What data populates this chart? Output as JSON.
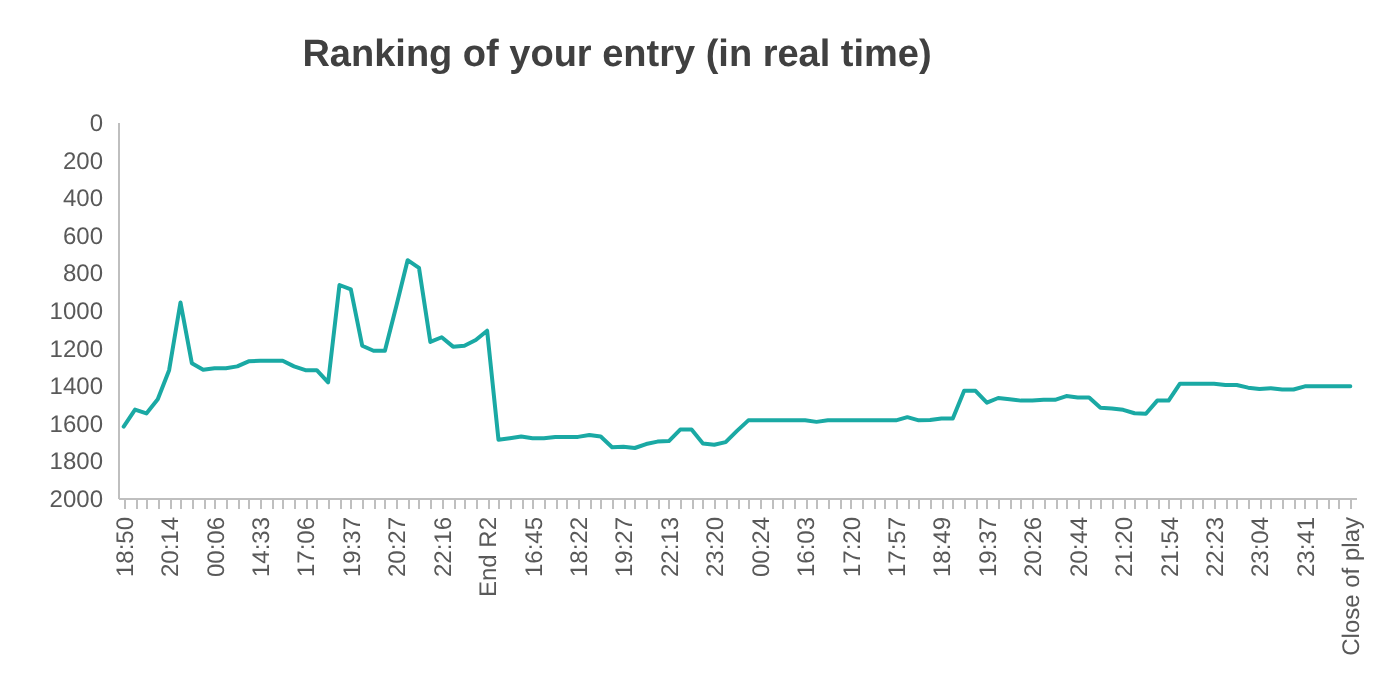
{
  "chart_data": {
    "type": "line",
    "title": "Ranking of your entry (in real time)",
    "categories": [
      "18:50",
      null,
      null,
      null,
      "20:14",
      null,
      null,
      null,
      "00:06",
      null,
      null,
      null,
      "14:33",
      null,
      null,
      null,
      "17:06",
      null,
      null,
      null,
      "19:37",
      null,
      null,
      null,
      "20:27",
      null,
      null,
      null,
      "22:16",
      null,
      null,
      null,
      "End R2",
      null,
      null,
      null,
      "16:45",
      null,
      null,
      null,
      "18:22",
      null,
      null,
      null,
      "19:27",
      null,
      null,
      null,
      "22:13",
      null,
      null,
      null,
      "23:20",
      null,
      null,
      null,
      "00:24",
      null,
      null,
      null,
      "16:03",
      null,
      null,
      null,
      "17:20",
      null,
      null,
      null,
      "17:57",
      null,
      null,
      null,
      "18:49",
      null,
      null,
      null,
      "19:37",
      null,
      null,
      null,
      "20:26",
      null,
      null,
      null,
      "20:44",
      null,
      null,
      null,
      "21:20",
      null,
      null,
      null,
      "21:54",
      null,
      null,
      null,
      "22:23",
      null,
      null,
      null,
      "23:04",
      null,
      null,
      null,
      "23:41",
      null,
      null,
      null,
      "Close of play"
    ],
    "series": [
      {
        "color": "#1aa9a4",
        "values": [
          1620,
          1530,
          1550,
          1475,
          1320,
          960,
          1283,
          1318,
          1310,
          1310,
          1300,
          1273,
          1270,
          1270,
          1270,
          1300,
          1320,
          1320,
          1385,
          867,
          890,
          1190,
          1217,
          1217,
          980,
          735,
          776,
          1170,
          1145,
          1195,
          1190,
          1160,
          1110,
          1690,
          1682,
          1673,
          1682,
          1682,
          1675,
          1675,
          1675,
          1665,
          1673,
          1730,
          1727,
          1734,
          1713,
          1700,
          1697,
          1636,
          1636,
          1710,
          1717,
          1703,
          1643,
          1587,
          1587,
          1587,
          1587,
          1587,
          1587,
          1595,
          1587,
          1587,
          1587,
          1587,
          1587,
          1587,
          1587,
          1570,
          1587,
          1585,
          1577,
          1577,
          1430,
          1430,
          1493,
          1468,
          1475,
          1482,
          1482,
          1478,
          1478,
          1458,
          1465,
          1465,
          1520,
          1524,
          1531,
          1549,
          1552,
          1482,
          1482,
          1392,
          1392,
          1392,
          1392,
          1399,
          1399,
          1413,
          1420,
          1416,
          1423,
          1423,
          1406,
          1406,
          1406,
          1406,
          1406
        ]
      }
    ],
    "ylim": [
      2000,
      0
    ],
    "yticks": [
      0,
      200,
      400,
      600,
      800,
      1000,
      1200,
      1400,
      1600,
      1800,
      2000
    ],
    "grid": false,
    "marker": "none",
    "line_style": "solid"
  }
}
